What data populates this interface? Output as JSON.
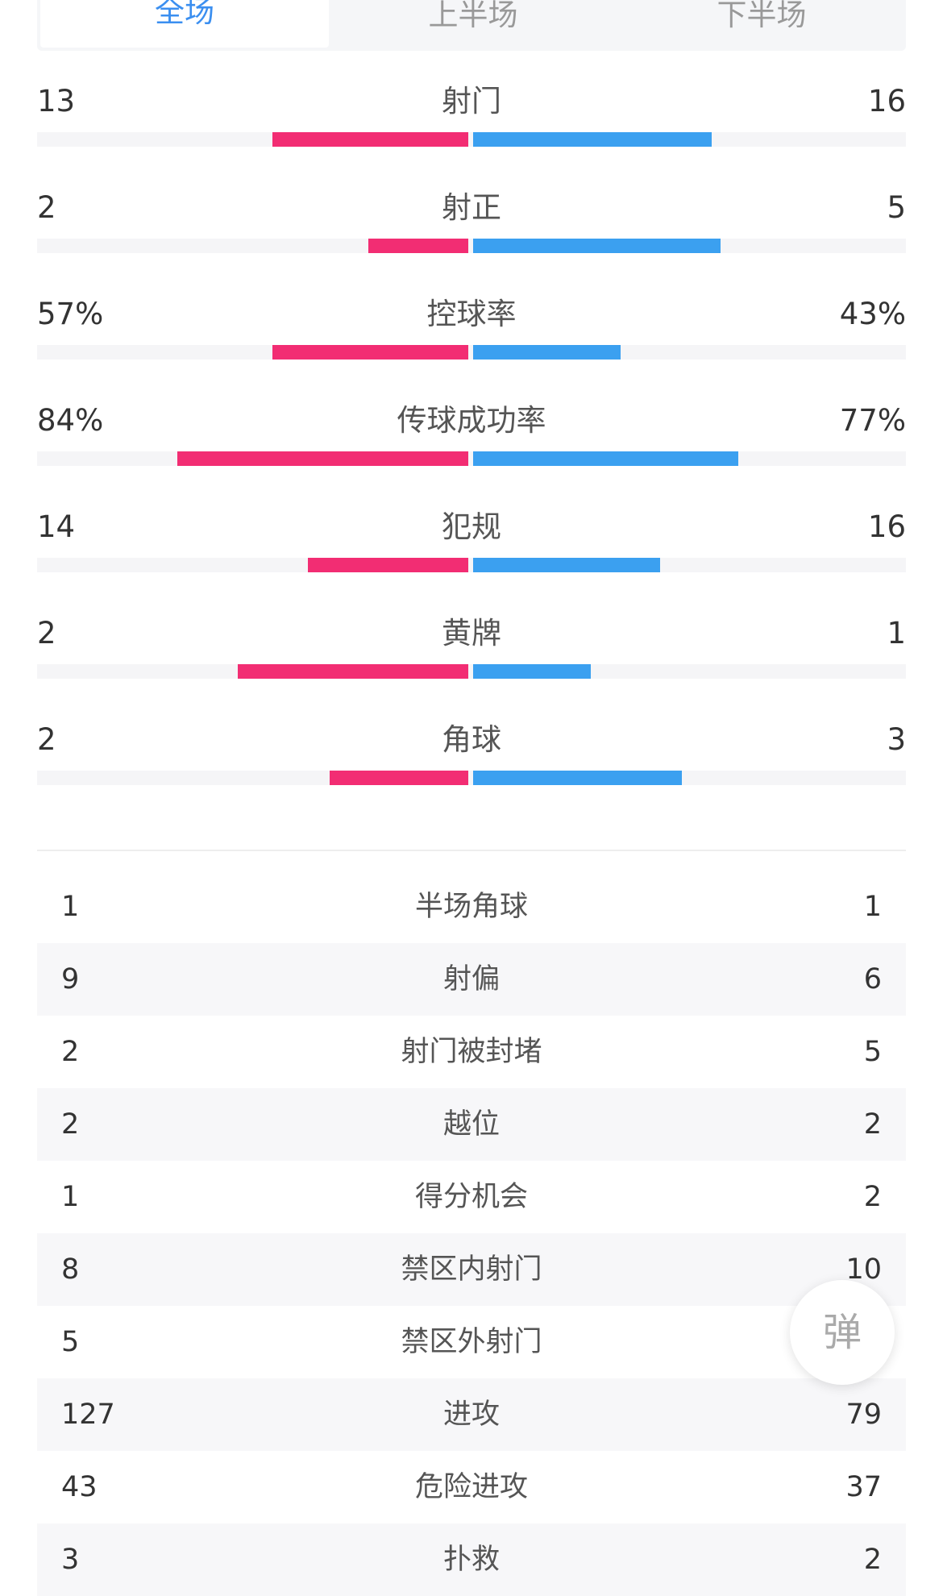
{
  "tabs": [
    "全场",
    "上半场",
    "下半场"
  ],
  "active_tab": 0,
  "colors": {
    "home": "#f22d73",
    "away": "#3ba0f0",
    "active_tab": "#3b8ff0"
  },
  "bar_stats": [
    {
      "label": "射门",
      "home": "13",
      "away": "16",
      "home_fill": 0.45,
      "away_fill": 0.55
    },
    {
      "label": "射正",
      "home": "2",
      "away": "5",
      "home_fill": 0.23,
      "away_fill": 0.57
    },
    {
      "label": "控球率",
      "home": "57%",
      "away": "43%",
      "home_fill": 0.45,
      "away_fill": 0.34
    },
    {
      "label": "传球成功率",
      "home": "84%",
      "away": "77%",
      "home_fill": 0.67,
      "away_fill": 0.61
    },
    {
      "label": "犯规",
      "home": "14",
      "away": "16",
      "home_fill": 0.37,
      "away_fill": 0.43
    },
    {
      "label": "黄牌",
      "home": "2",
      "away": "1",
      "home_fill": 0.53,
      "away_fill": 0.27
    },
    {
      "label": "角球",
      "home": "2",
      "away": "3",
      "home_fill": 0.32,
      "away_fill": 0.48
    }
  ],
  "table_stats": [
    {
      "label": "半场角球",
      "home": "1",
      "away": "1"
    },
    {
      "label": "射偏",
      "home": "9",
      "away": "6"
    },
    {
      "label": "射门被封堵",
      "home": "2",
      "away": "5"
    },
    {
      "label": "越位",
      "home": "2",
      "away": "2"
    },
    {
      "label": "得分机会",
      "home": "1",
      "away": "2"
    },
    {
      "label": "禁区内射门",
      "home": "8",
      "away": "10"
    },
    {
      "label": "禁区外射门",
      "home": "5",
      "away": ""
    },
    {
      "label": "进攻",
      "home": "127",
      "away": "79"
    },
    {
      "label": "危险进攻",
      "home": "43",
      "away": "37"
    },
    {
      "label": "扑救",
      "home": "3",
      "away": "2"
    }
  ],
  "fab": {
    "label": "弹"
  }
}
